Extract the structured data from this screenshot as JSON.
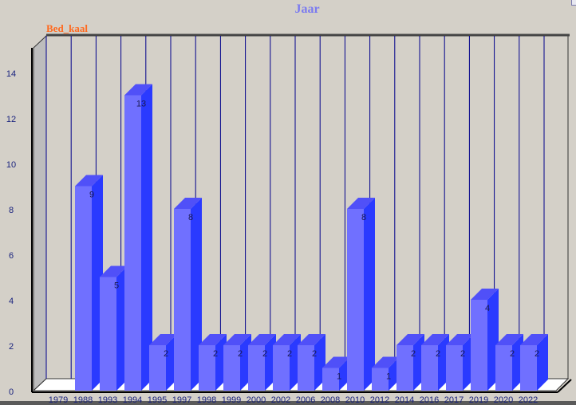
{
  "chart_data": {
    "type": "bar",
    "title": "Jaar",
    "series_label": "Bed_kaal",
    "categories": [
      "1979",
      "1988",
      "1993",
      "1994",
      "1995",
      "1997",
      "1998",
      "1999",
      "2000",
      "2002",
      "2006",
      "2008",
      "2010",
      "2012",
      "2014",
      "2016",
      "2017",
      "2019",
      "2020",
      "2022"
    ],
    "values": [
      0,
      9,
      5,
      13,
      2,
      8,
      2,
      2,
      2,
      2,
      2,
      1,
      8,
      1,
      2,
      2,
      2,
      4,
      2,
      2
    ],
    "yticks": [
      0,
      2,
      4,
      6,
      8,
      10,
      12,
      14
    ],
    "ylim": [
      0,
      15
    ],
    "grid": "vertical",
    "style": "3d",
    "colors": {
      "bar_front": "#7070ff",
      "bar_side": "#2a3aff",
      "bar_top": "#5050f8",
      "grid": "#00008b",
      "title": "#7b7bf0",
      "series_label": "#ff6a20"
    }
  }
}
